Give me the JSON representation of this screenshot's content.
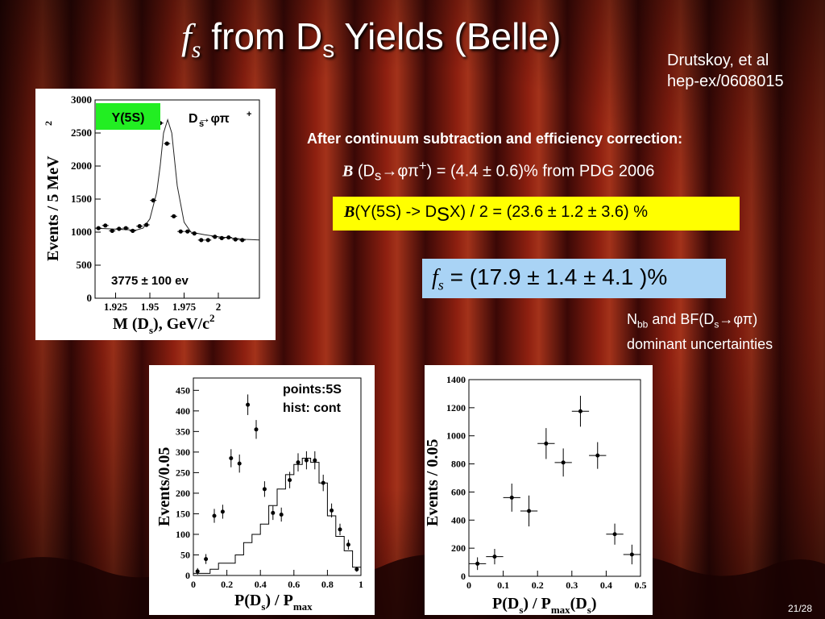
{
  "colors": {
    "title_text": "#ffffff",
    "yellow_box": "#ffff00",
    "blue_box": "#a9d3f5",
    "green_box": "#22ee22",
    "curtain_dark": "#2a0505",
    "curtain_red": "#8a1a0c"
  },
  "slide": {
    "title_fs": "f",
    "title_fs_sub": "s",
    "title_main": " from D",
    "title_main_sub": "s",
    "title_end": " Yields (Belle)",
    "ref_line1": "Drutskoy, et al",
    "ref_line2": "hep-ex/0608015",
    "note_heading": "After continuum subtraction and efficiency correction:",
    "bf_symbol": "B",
    "bf_line_a": " (D",
    "bf_line_sub": "s",
    "bf_line_arrow": "→φπ",
    "bf_line_sup": "+",
    "bf_line_b": ") = (4.4 ± 0.6)%  from PDG 2006",
    "yellow_a": "(Y(5S) -> D",
    "yellow_sub": "S",
    "yellow_b": "X)  / 2 = (23.6 ± 1.2 ± 3.6) %",
    "blue_fs": "f",
    "blue_fs_sub": "s",
    "blue_value": " = (17.9 ± 1.4 ± 4.1 )%",
    "nbb_a": "N",
    "nbb_sub": "bb",
    "nbb_b": " and BF(D",
    "nbb_sub2": "s",
    "nbb_c": "→φπ)",
    "nbb_line2": "dominant uncertainties",
    "slide_number": "21/28"
  },
  "chart_data": [
    {
      "type": "scatter",
      "tag": "Y(5S)",
      "channel": "D→φπ",
      "channel_sub": "s",
      "channel_sup": "+",
      "yield_label": "3775 ± 100 ev",
      "ylabel": "Events / 5 MeV",
      "ylabel_sup": "2",
      "xlabel": "M (D",
      "xlabel_sub": "s",
      "xlabel_end": "), GeV/c",
      "xlabel_sup": "2",
      "xlim": [
        1.91,
        2.03
      ],
      "ylim": [
        0,
        3000
      ],
      "xticks": [
        1.925,
        1.95,
        1.975,
        2
      ],
      "xtick_labels": [
        "1.925",
        "1.95",
        "1.975",
        "2"
      ],
      "yticks": [
        0,
        500,
        1000,
        1500,
        2000,
        2500,
        3000
      ],
      "ytick_labels": [
        "0",
        "500",
        "1000",
        "1500",
        "2000",
        "2500",
        "3000"
      ],
      "points": {
        "x": [
          1.9125,
          1.9175,
          1.9225,
          1.9275,
          1.9325,
          1.9375,
          1.9425,
          1.9475,
          1.9525,
          1.9575,
          1.9625,
          1.9675,
          1.9725,
          1.9775,
          1.9825,
          1.9875,
          1.9925,
          1.9975,
          2.0025,
          2.0075,
          2.0125,
          2.0175
        ],
        "y": [
          1060,
          1100,
          1020,
          1050,
          1060,
          1020,
          1090,
          1110,
          1480,
          2650,
          2340,
          1240,
          1010,
          1010,
          980,
          880,
          880,
          930,
          910,
          920,
          890,
          880
        ]
      },
      "fit": {
        "x": [
          1.91,
          1.92,
          1.93,
          1.935,
          1.94,
          1.945,
          1.95,
          1.955,
          1.9575,
          1.96,
          1.963,
          1.966,
          1.97,
          1.975,
          1.98,
          1.99,
          2.0,
          2.01,
          2.02,
          2.03
        ],
        "y": [
          1060,
          1050,
          1040,
          1035,
          1030,
          1060,
          1200,
          1600,
          2000,
          2500,
          2700,
          2500,
          1700,
          1150,
          1000,
          960,
          930,
          910,
          890,
          880
        ]
      }
    },
    {
      "type": "scatter",
      "legend_line1": "points:5S",
      "legend_line2": "hist: cont",
      "ylabel": "Events/0.05",
      "xlabel": "P(D",
      "xlabel_sub": "s",
      "xlabel_mid": ") / P",
      "xlabel_sub2": "max",
      "xlim": [
        0,
        1
      ],
      "ylim": [
        0,
        480
      ],
      "xticks": [
        0,
        0.2,
        0.4,
        0.6,
        0.8,
        1
      ],
      "xtick_labels": [
        "0",
        "0.2",
        "0.4",
        "0.6",
        "0.8",
        "1"
      ],
      "yticks": [
        0,
        50,
        100,
        150,
        200,
        250,
        300,
        350,
        400,
        450
      ],
      "ytick_labels": [
        "0",
        "50",
        "100",
        "150",
        "200",
        "250",
        "300",
        "350",
        "400",
        "450"
      ],
      "points": {
        "x": [
          0.025,
          0.075,
          0.125,
          0.175,
          0.225,
          0.275,
          0.325,
          0.375,
          0.425,
          0.475,
          0.525,
          0.575,
          0.625,
          0.675,
          0.725,
          0.775,
          0.825,
          0.875,
          0.925,
          0.975
        ],
        "y": [
          10,
          40,
          145,
          155,
          285,
          272,
          415,
          355,
          210,
          152,
          148,
          232,
          275,
          280,
          280,
          225,
          158,
          112,
          75,
          15
        ],
        "yerr": [
          8,
          12,
          17,
          17,
          22,
          22,
          25,
          23,
          19,
          17,
          17,
          20,
          22,
          22,
          22,
          20,
          17,
          14,
          12,
          6
        ]
      },
      "histogram": {
        "bin_edges": [
          0,
          0.05,
          0.1,
          0.15,
          0.2,
          0.25,
          0.3,
          0.35,
          0.4,
          0.45,
          0.5,
          0.55,
          0.6,
          0.65,
          0.7,
          0.75,
          0.8,
          0.85,
          0.9,
          0.95,
          1.0
        ],
        "values": [
          5,
          5,
          15,
          30,
          30,
          50,
          80,
          100,
          125,
          170,
          210,
          245,
          270,
          285,
          275,
          225,
          145,
          95,
          60,
          20
        ]
      }
    },
    {
      "type": "scatter",
      "ylabel": "Events / 0.05",
      "xlabel": "P(D",
      "xlabel_sub": "s",
      "xlabel_mid": ") / P",
      "xlabel_sub2": "max",
      "xlabel_mid2": "(D",
      "xlabel_sub3": "s",
      "xlabel_end": ")",
      "xlim": [
        0,
        0.5
      ],
      "ylim": [
        0,
        1400
      ],
      "xticks": [
        0,
        0.1,
        0.2,
        0.3,
        0.4,
        0.5
      ],
      "xtick_labels": [
        "0",
        "0.1",
        "0.2",
        "0.3",
        "0.4",
        "0.5"
      ],
      "yticks": [
        0,
        200,
        400,
        600,
        800,
        1000,
        1200,
        1400
      ],
      "ytick_labels": [
        "0",
        "200",
        "400",
        "600",
        "800",
        "1000",
        "1200",
        "1400"
      ],
      "points": {
        "x": [
          0.025,
          0.075,
          0.125,
          0.175,
          0.225,
          0.275,
          0.325,
          0.375,
          0.425,
          0.475
        ],
        "y": [
          90,
          140,
          560,
          465,
          945,
          810,
          1175,
          860,
          300,
          155
        ],
        "yerr": [
          45,
          55,
          100,
          110,
          110,
          100,
          110,
          95,
          75,
          70
        ]
      }
    }
  ]
}
